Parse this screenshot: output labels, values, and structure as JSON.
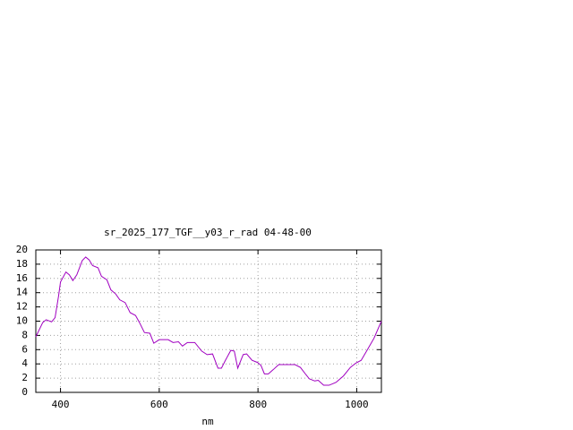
{
  "chart_data": {
    "type": "line",
    "title": "sr_2025_177_TGF__y03_r_rad 04-48-00",
    "x_label": "nm",
    "x": [
      350,
      364,
      371,
      382,
      389,
      396,
      400,
      411,
      418,
      425,
      433,
      444,
      451,
      458,
      465,
      476,
      483,
      494,
      502,
      512,
      520,
      531,
      541,
      552,
      560,
      570,
      581,
      589,
      600,
      618,
      628,
      639,
      647,
      657,
      672,
      686,
      697,
      708,
      719,
      726,
      734,
      745,
      752,
      759,
      770,
      777,
      788,
      799,
      806,
      813,
      821,
      831,
      842,
      861,
      875,
      886,
      897,
      904,
      915,
      922,
      933,
      944,
      958,
      973,
      987,
      998,
      1009,
      1020,
      1035,
      1050
    ],
    "series": [
      {
        "color": "#a000c0",
        "values": [
          7.8,
          9.8,
          10.2,
          9.9,
          10.5,
          13.5,
          15.5,
          16.9,
          16.5,
          15.7,
          16.5,
          18.5,
          19.0,
          18.6,
          17.8,
          17.5,
          16.3,
          15.8,
          14.4,
          13.8,
          13.0,
          12.6,
          11.2,
          10.8,
          9.8,
          8.4,
          8.3,
          6.9,
          7.4,
          7.4,
          7.0,
          7.1,
          6.5,
          7.0,
          7.0,
          5.8,
          5.3,
          5.4,
          3.4,
          3.4,
          4.5,
          5.9,
          5.8,
          3.4,
          5.3,
          5.4,
          4.5,
          4.2,
          3.8,
          2.6,
          2.6,
          3.2,
          3.9,
          3.9,
          3.9,
          3.5,
          2.5,
          1.9,
          1.6,
          1.7,
          1.0,
          1.0,
          1.4,
          2.3,
          3.5,
          4.1,
          4.5,
          5.8,
          7.6,
          10.0
        ]
      }
    ],
    "xlim": [
      350,
      1050
    ],
    "xticks": [
      400,
      600,
      800,
      1000
    ],
    "ylim": [
      0,
      20
    ],
    "yticks": [
      0,
      2,
      4,
      6,
      8,
      10,
      12,
      14,
      16,
      18,
      20
    ],
    "grid": true
  }
}
